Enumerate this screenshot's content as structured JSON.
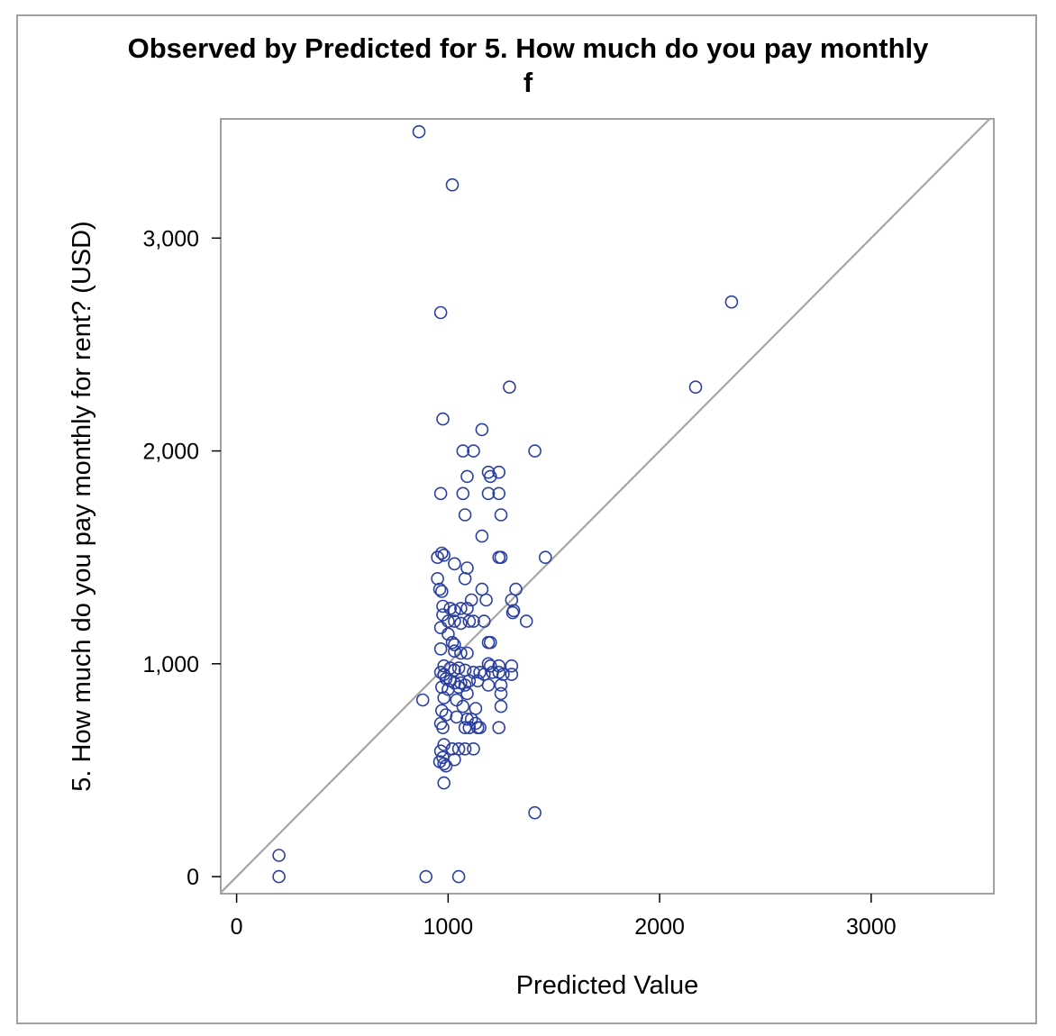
{
  "chart_data": {
    "type": "scatter",
    "title": "Observed by Predicted for 5. How much do you pay monthly",
    "title_line2": "f",
    "xlabel": "Predicted Value",
    "ylabel": "5. How much do you pay monthly for rent? (USD)",
    "xlim": [
      -75,
      3580
    ],
    "ylim": [
      -80,
      3560
    ],
    "x_ticks": [
      0,
      1000,
      2000,
      3000
    ],
    "x_tick_labels": [
      "0",
      "1000",
      "2000",
      "3000"
    ],
    "y_ticks": [
      0,
      1000,
      2000,
      3000
    ],
    "y_tick_labels": [
      "0",
      "1,000",
      "2,000",
      "3,000"
    ],
    "grid": false,
    "reference_line": "y = x",
    "colors": {
      "marker": "#2a3fa0",
      "reference_line": "#a6a6a6",
      "frame": "#a0a0a0"
    },
    "points": [
      [
        862,
        3500
      ],
      [
        1020,
        3250
      ],
      [
        965,
        2650
      ],
      [
        2340,
        2700
      ],
      [
        1290,
        2300
      ],
      [
        2170,
        2300
      ],
      [
        975,
        2150
      ],
      [
        1160,
        2100
      ],
      [
        1070,
        2000
      ],
      [
        1120,
        2000
      ],
      [
        1410,
        2000
      ],
      [
        1190,
        1900
      ],
      [
        1240,
        1900
      ],
      [
        1090,
        1880
      ],
      [
        1200,
        1880
      ],
      [
        965,
        1800
      ],
      [
        1070,
        1800
      ],
      [
        1190,
        1800
      ],
      [
        1240,
        1800
      ],
      [
        1080,
        1700
      ],
      [
        1250,
        1700
      ],
      [
        1160,
        1600
      ],
      [
        950,
        1500
      ],
      [
        970,
        1520
      ],
      [
        980,
        1510
      ],
      [
        1240,
        1500
      ],
      [
        1250,
        1500
      ],
      [
        1460,
        1500
      ],
      [
        1030,
        1470
      ],
      [
        1090,
        1450
      ],
      [
        950,
        1400
      ],
      [
        1080,
        1400
      ],
      [
        960,
        1350
      ],
      [
        970,
        1340
      ],
      [
        1160,
        1350
      ],
      [
        1320,
        1350
      ],
      [
        1110,
        1300
      ],
      [
        1180,
        1300
      ],
      [
        1300,
        1300
      ],
      [
        975,
        1270
      ],
      [
        1010,
        1260
      ],
      [
        1030,
        1250
      ],
      [
        1060,
        1260
      ],
      [
        1090,
        1260
      ],
      [
        1310,
        1250
      ],
      [
        1305,
        1240
      ],
      [
        975,
        1230
      ],
      [
        1000,
        1200
      ],
      [
        1030,
        1200
      ],
      [
        1060,
        1190
      ],
      [
        1100,
        1200
      ],
      [
        1120,
        1200
      ],
      [
        1170,
        1200
      ],
      [
        1370,
        1200
      ],
      [
        965,
        1170
      ],
      [
        1000,
        1140
      ],
      [
        1190,
        1100
      ],
      [
        1200,
        1100
      ],
      [
        1020,
        1100
      ],
      [
        1030,
        1090
      ],
      [
        965,
        1070
      ],
      [
        1030,
        1060
      ],
      [
        1060,
        1050
      ],
      [
        1090,
        1050
      ],
      [
        1190,
        1000
      ],
      [
        1200,
        990
      ],
      [
        1240,
        990
      ],
      [
        1300,
        990
      ],
      [
        980,
        990
      ],
      [
        965,
        960
      ],
      [
        980,
        950
      ],
      [
        1010,
        980
      ],
      [
        1030,
        970
      ],
      [
        1050,
        980
      ],
      [
        1080,
        970
      ],
      [
        1120,
        960
      ],
      [
        1150,
        960
      ],
      [
        1170,
        950
      ],
      [
        1210,
        960
      ],
      [
        1240,
        960
      ],
      [
        1260,
        950
      ],
      [
        1300,
        950
      ],
      [
        990,
        930
      ],
      [
        1010,
        920
      ],
      [
        1030,
        910
      ],
      [
        1060,
        910
      ],
      [
        1080,
        900
      ],
      [
        1100,
        920
      ],
      [
        1140,
        920
      ],
      [
        1190,
        900
      ],
      [
        1250,
        900
      ],
      [
        970,
        890
      ],
      [
        1000,
        880
      ],
      [
        1050,
        890
      ],
      [
        1090,
        860
      ],
      [
        1250,
        860
      ],
      [
        880,
        830
      ],
      [
        980,
        840
      ],
      [
        1040,
        830
      ],
      [
        1070,
        800
      ],
      [
        1130,
        790
      ],
      [
        1250,
        800
      ],
      [
        970,
        780
      ],
      [
        990,
        760
      ],
      [
        1040,
        750
      ],
      [
        1090,
        740
      ],
      [
        1110,
        740
      ],
      [
        1130,
        720
      ],
      [
        965,
        720
      ],
      [
        975,
        700
      ],
      [
        1080,
        700
      ],
      [
        1100,
        700
      ],
      [
        1140,
        700
      ],
      [
        1150,
        700
      ],
      [
        1240,
        700
      ],
      [
        980,
        620
      ],
      [
        1020,
        600
      ],
      [
        1050,
        600
      ],
      [
        1080,
        600
      ],
      [
        1120,
        600
      ],
      [
        965,
        590
      ],
      [
        975,
        560
      ],
      [
        1030,
        550
      ],
      [
        960,
        540
      ],
      [
        980,
        530
      ],
      [
        990,
        520
      ],
      [
        980,
        440
      ],
      [
        1410,
        300
      ],
      [
        200,
        100
      ],
      [
        200,
        0
      ],
      [
        895,
        0
      ],
      [
        1050,
        0
      ]
    ]
  }
}
